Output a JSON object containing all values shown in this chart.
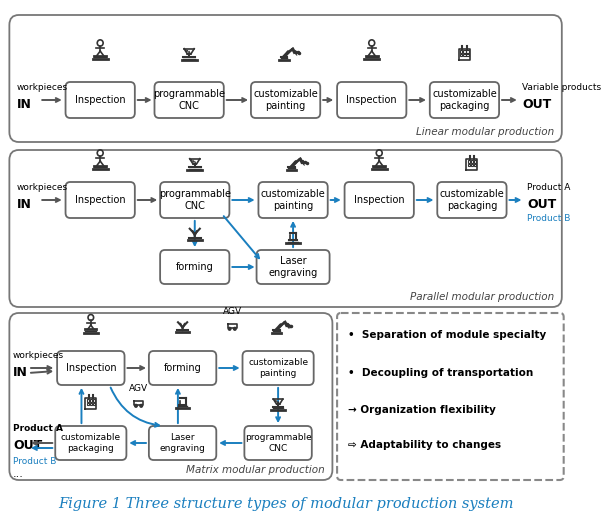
{
  "title": "Figure 1 Three structure types of modular production system",
  "title_color": "#1a7fbf",
  "title_fontsize": 10.5,
  "background_color": "#ffffff",
  "box_edgecolor": "#666666",
  "arrow_black": "#555555",
  "arrow_blue": "#1a7fbf",
  "section_labels": [
    "Linear modular production",
    "Parallel modular production",
    "Matrix modular production"
  ],
  "section_label_fontsize": 7.5,
  "bullet_items": [
    "•  Separation of module specialty",
    "•  Decoupling of transportation",
    "→ Organization flexibility",
    "⇨ Adaptability to changes"
  ],
  "bullet_fontsize": 7.5
}
